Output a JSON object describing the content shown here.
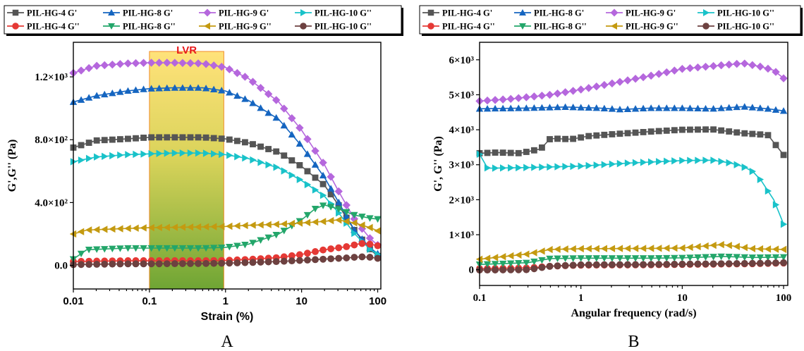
{
  "chart_data": [
    {
      "id": "A",
      "panel_label": "A",
      "type": "line",
      "xlabel": "Strain (%)",
      "ylabel": "G',G'' (Pa)",
      "xscale": "log",
      "xlim": [
        0.01,
        110
      ],
      "ylim": [
        -150,
        1420
      ],
      "xticks": [
        {
          "v": 0.01,
          "label": "0.01"
        },
        {
          "v": 0.1,
          "label": "0.1"
        },
        {
          "v": 1,
          "label": "1"
        },
        {
          "v": 10,
          "label": "10"
        },
        {
          "v": 100,
          "label": "100"
        }
      ],
      "yticks": [
        {
          "v": 0,
          "label": "0.0"
        },
        {
          "v": 400,
          "label": "4.0×10²"
        },
        {
          "v": 800,
          "label": "8.0×10²"
        },
        {
          "v": 1200,
          "label": "1.2×10³"
        }
      ],
      "annotation": {
        "text": "LVR",
        "x_range": [
          0.1,
          0.95
        ],
        "color": "#e8191b"
      },
      "legend": "top",
      "series": [
        {
          "name": "PIL-HG-4 G'",
          "color": "#555555",
          "marker": "square",
          "points": [
            [
              0.01,
              750
            ],
            [
              0.02,
              795
            ],
            [
              0.05,
              805
            ],
            [
              0.1,
              815
            ],
            [
              0.2,
              815
            ],
            [
              0.5,
              815
            ],
            [
              1,
              805
            ],
            [
              2,
              780
            ],
            [
              5,
              720
            ],
            [
              10,
              630
            ],
            [
              20,
              510
            ],
            [
              30,
              390
            ],
            [
              50,
              220
            ],
            [
              80,
              100
            ],
            [
              100,
              60
            ]
          ]
        },
        {
          "name": "PIL-HG-8 G'",
          "color": "#1565c0",
          "marker": "triangle-up",
          "points": [
            [
              0.01,
              1040
            ],
            [
              0.02,
              1080
            ],
            [
              0.05,
              1110
            ],
            [
              0.1,
              1125
            ],
            [
              0.2,
              1130
            ],
            [
              0.5,
              1130
            ],
            [
              1,
              1110
            ],
            [
              2,
              1050
            ],
            [
              5,
              930
            ],
            [
              10,
              760
            ],
            [
              20,
              560
            ],
            [
              30,
              410
            ],
            [
              50,
              220
            ],
            [
              80,
              110
            ],
            [
              100,
              75
            ]
          ]
        },
        {
          "name": "PIL-HG-9 G'",
          "color": "#b567dd",
          "marker": "diamond",
          "points": [
            [
              0.01,
              1225
            ],
            [
              0.02,
              1270
            ],
            [
              0.05,
              1285
            ],
            [
              0.1,
              1290
            ],
            [
              0.2,
              1290
            ],
            [
              0.5,
              1285
            ],
            [
              1,
              1260
            ],
            [
              2,
              1190
            ],
            [
              5,
              1040
            ],
            [
              10,
              860
            ],
            [
              20,
              640
            ],
            [
              30,
              480
            ],
            [
              50,
              290
            ],
            [
              80,
              170
            ],
            [
              100,
              130
            ]
          ]
        },
        {
          "name": "PIL-HG-10 G''",
          "color": "#19c2c9",
          "marker": "triangle-right",
          "points": [
            [
              0.01,
              660
            ],
            [
              0.02,
              690
            ],
            [
              0.05,
              705
            ],
            [
              0.1,
              710
            ],
            [
              0.2,
              715
            ],
            [
              0.5,
              715
            ],
            [
              1,
              705
            ],
            [
              2,
              680
            ],
            [
              5,
              620
            ],
            [
              10,
              540
            ],
            [
              20,
              440
            ],
            [
              30,
              340
            ],
            [
              50,
              200
            ],
            [
              80,
              100
            ],
            [
              100,
              70
            ]
          ]
        },
        {
          "name": "PIL-HG-4 G''",
          "color": "#e53935",
          "marker": "circle",
          "points": [
            [
              0.01,
              25
            ],
            [
              0.05,
              30
            ],
            [
              0.1,
              30
            ],
            [
              0.5,
              30
            ],
            [
              1,
              32
            ],
            [
              2,
              38
            ],
            [
              5,
              50
            ],
            [
              10,
              70
            ],
            [
              20,
              100
            ],
            [
              40,
              120
            ],
            [
              60,
              140
            ],
            [
              80,
              135
            ],
            [
              100,
              125
            ]
          ]
        },
        {
          "name": "PIL-HG-8 G''",
          "color": "#23a66a",
          "marker": "triangle-down",
          "points": [
            [
              0.01,
              40
            ],
            [
              0.015,
              100
            ],
            [
              0.05,
              110
            ],
            [
              0.1,
              110
            ],
            [
              0.5,
              110
            ],
            [
              1,
              115
            ],
            [
              2,
              135
            ],
            [
              5,
              200
            ],
            [
              10,
              290
            ],
            [
              15,
              360
            ],
            [
              20,
              385
            ],
            [
              30,
              360
            ],
            [
              50,
              320
            ],
            [
              80,
              300
            ],
            [
              100,
              295
            ]
          ]
        },
        {
          "name": "PIL-HG-9 G''",
          "color": "#c49a10",
          "marker": "triangle-left",
          "points": [
            [
              0.01,
              200
            ],
            [
              0.015,
              225
            ],
            [
              0.05,
              235
            ],
            [
              0.1,
              240
            ],
            [
              0.5,
              245
            ],
            [
              1,
              248
            ],
            [
              2,
              255
            ],
            [
              5,
              262
            ],
            [
              10,
              270
            ],
            [
              20,
              280
            ],
            [
              30,
              290
            ],
            [
              50,
              270
            ],
            [
              80,
              240
            ],
            [
              100,
              220
            ]
          ]
        },
        {
          "name": "PIL-HG-10 G''",
          "color": "#6d4140",
          "marker": "circle",
          "points": [
            [
              0.01,
              5
            ],
            [
              0.05,
              10
            ],
            [
              0.1,
              10
            ],
            [
              0.5,
              12
            ],
            [
              1,
              14
            ],
            [
              2,
              18
            ],
            [
              5,
              25
            ],
            [
              10,
              32
            ],
            [
              20,
              40
            ],
            [
              40,
              48
            ],
            [
              60,
              55
            ],
            [
              80,
              52
            ],
            [
              100,
              45
            ]
          ]
        }
      ]
    },
    {
      "id": "B",
      "panel_label": "B",
      "type": "line",
      "xlabel": "Angular frequency (rad/s)",
      "ylabel": "G', G'' (Pa)",
      "xscale": "log",
      "xlim": [
        0.1,
        110
      ],
      "ylim": [
        -450,
        6500
      ],
      "xticks": [
        {
          "v": 0.1,
          "label": "0.1"
        },
        {
          "v": 1,
          "label": "1"
        },
        {
          "v": 10,
          "label": "10"
        },
        {
          "v": 100,
          "label": "100"
        }
      ],
      "yticks": [
        {
          "v": 0,
          "label": "0"
        },
        {
          "v": 1000,
          "label": "1×10³"
        },
        {
          "v": 2000,
          "label": "2×10³"
        },
        {
          "v": 3000,
          "label": "3×10³"
        },
        {
          "v": 4000,
          "label": "4×10³"
        },
        {
          "v": 5000,
          "label": "5×10³"
        },
        {
          "v": 6000,
          "label": "6×10³"
        }
      ],
      "legend": "top",
      "series": [
        {
          "name": "PIL-HG-4 G'",
          "color": "#555555",
          "marker": "square",
          "points": [
            [
              0.1,
              3330
            ],
            [
              0.15,
              3350
            ],
            [
              0.25,
              3330
            ],
            [
              0.4,
              3450
            ],
            [
              0.5,
              3750
            ],
            [
              0.8,
              3730
            ],
            [
              1.2,
              3820
            ],
            [
              2,
              3870
            ],
            [
              5,
              3950
            ],
            [
              10,
              4000
            ],
            [
              20,
              4010
            ],
            [
              40,
              3900
            ],
            [
              70,
              3850
            ],
            [
              100,
              3280
            ]
          ]
        },
        {
          "name": "PIL-HG-8 G'",
          "color": "#1565c0",
          "marker": "triangle-up",
          "points": [
            [
              0.1,
              4600
            ],
            [
              0.3,
              4620
            ],
            [
              0.7,
              4650
            ],
            [
              1.5,
              4620
            ],
            [
              2.5,
              4580
            ],
            [
              5,
              4620
            ],
            [
              10,
              4620
            ],
            [
              20,
              4600
            ],
            [
              40,
              4660
            ],
            [
              70,
              4600
            ],
            [
              100,
              4540
            ]
          ]
        },
        {
          "name": "PIL-HG-9 G'",
          "color": "#b567dd",
          "marker": "diamond",
          "points": [
            [
              0.1,
              4820
            ],
            [
              0.2,
              4880
            ],
            [
              0.5,
              5000
            ],
            [
              1,
              5150
            ],
            [
              2,
              5320
            ],
            [
              5,
              5550
            ],
            [
              10,
              5740
            ],
            [
              20,
              5820
            ],
            [
              40,
              5900
            ],
            [
              60,
              5800
            ],
            [
              80,
              5700
            ],
            [
              100,
              5470
            ]
          ]
        },
        {
          "name": "PIL-HG-10 G''",
          "color": "#19c2c9",
          "marker": "triangle-right",
          "points": [
            [
              0.1,
              3300
            ],
            [
              0.12,
              2900
            ],
            [
              0.3,
              2920
            ],
            [
              1,
              2960
            ],
            [
              3,
              3050
            ],
            [
              10,
              3120
            ],
            [
              20,
              3130
            ],
            [
              30,
              3050
            ],
            [
              40,
              2950
            ],
            [
              50,
              2800
            ],
            [
              60,
              2550
            ],
            [
              80,
              2000
            ],
            [
              100,
              1300
            ]
          ]
        },
        {
          "name": "PIL-HG-4 G''",
          "color": "#e53935",
          "marker": "circle",
          "points": [
            [
              0.1,
              30
            ],
            [
              0.3,
              50
            ],
            [
              0.5,
              100
            ],
            [
              1,
              130
            ],
            [
              5,
              140
            ],
            [
              10,
              150
            ],
            [
              50,
              170
            ],
            [
              100,
              190
            ]
          ]
        },
        {
          "name": "PIL-HG-8 G''",
          "color": "#23a66a",
          "marker": "triangle-down",
          "points": [
            [
              0.1,
              150
            ],
            [
              0.3,
              200
            ],
            [
              0.5,
              320
            ],
            [
              1,
              330
            ],
            [
              5,
              330
            ],
            [
              10,
              340
            ],
            [
              25,
              380
            ],
            [
              50,
              350
            ],
            [
              100,
              360
            ]
          ]
        },
        {
          "name": "PIL-HG-9 G''",
          "color": "#c49a10",
          "marker": "triangle-left",
          "points": [
            [
              0.1,
              300
            ],
            [
              0.3,
              450
            ],
            [
              0.5,
              580
            ],
            [
              1,
              600
            ],
            [
              5,
              610
            ],
            [
              10,
              620
            ],
            [
              25,
              720
            ],
            [
              50,
              600
            ],
            [
              100,
              580
            ]
          ]
        },
        {
          "name": "PIL-HG-10 G''",
          "color": "#6d4140",
          "marker": "circle",
          "points": [
            [
              0.1,
              -10
            ],
            [
              0.3,
              0
            ],
            [
              0.5,
              100
            ],
            [
              1,
              140
            ],
            [
              5,
              150
            ],
            [
              10,
              160
            ],
            [
              50,
              180
            ],
            [
              100,
              200
            ]
          ]
        }
      ]
    }
  ]
}
